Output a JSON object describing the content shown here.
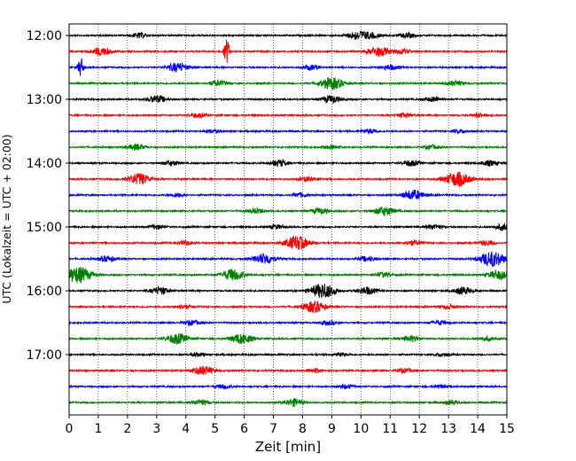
{
  "chart_data": {
    "type": "line",
    "xlabel": "Zeit  [min]",
    "ylabel": "UTC (Lokalzeit = UTC + 02:00)",
    "xlim": [
      0,
      15
    ],
    "x_ticks": [
      0,
      1,
      2,
      3,
      4,
      5,
      6,
      7,
      8,
      9,
      10,
      11,
      12,
      13,
      14,
      15
    ],
    "x_tick_labels": [
      "0",
      "1",
      "2",
      "3",
      "4",
      "5",
      "6",
      "7",
      "8",
      "9",
      "10",
      "11",
      "12",
      "13",
      "14",
      "15"
    ],
    "y_tick_labels": [
      "12:00",
      "13:00",
      "14:00",
      "15:00",
      "16:00",
      "17:00"
    ],
    "y_tick_rows": [
      0,
      4,
      8,
      12,
      16,
      20
    ],
    "grid": "vertical dotted at every minute",
    "trace_colors": [
      "#000000",
      "#ff0000",
      "#0000ff",
      "#008000"
    ],
    "traces": [
      {
        "start": "12:00",
        "bursts": [
          {
            "t": 2.4,
            "amp": 0.3
          },
          {
            "t": 9.9,
            "amp": 0.55
          },
          {
            "t": 10.4,
            "amp": 0.3
          },
          {
            "t": 11.6,
            "amp": 0.3
          }
        ]
      },
      {
        "start": "12:15",
        "bursts": [
          {
            "t": 1.1,
            "amp": 0.5
          },
          {
            "t": 5.4,
            "amp": 1.5
          },
          {
            "t": 10.6,
            "amp": 0.6
          },
          {
            "t": 11.4,
            "amp": 0.3
          }
        ]
      },
      {
        "start": "12:30",
        "bursts": [
          {
            "t": 0.4,
            "amp": 1.2
          },
          {
            "t": 3.7,
            "amp": 0.55
          },
          {
            "t": 8.3,
            "amp": 0.3
          },
          {
            "t": 11.0,
            "amp": 0.3
          }
        ]
      },
      {
        "start": "12:45",
        "bursts": [
          {
            "t": 5.1,
            "amp": 0.35
          },
          {
            "t": 9.0,
            "amp": 0.75
          },
          {
            "t": 13.2,
            "amp": 0.3
          }
        ]
      },
      {
        "start": "13:00",
        "bursts": [
          {
            "t": 3.0,
            "amp": 0.45
          },
          {
            "t": 9.0,
            "amp": 0.45
          },
          {
            "t": 12.5,
            "amp": 0.3
          }
        ]
      },
      {
        "start": "13:15",
        "bursts": [
          {
            "t": 4.4,
            "amp": 0.25
          },
          {
            "t": 11.5,
            "amp": 0.25
          },
          {
            "t": 14.1,
            "amp": 0.25
          }
        ]
      },
      {
        "start": "13:30",
        "bursts": [
          {
            "t": 4.9,
            "amp": 0.2
          },
          {
            "t": 10.3,
            "amp": 0.25
          },
          {
            "t": 13.4,
            "amp": 0.2
          }
        ]
      },
      {
        "start": "13:45",
        "bursts": [
          {
            "t": 2.3,
            "amp": 0.35
          },
          {
            "t": 9.0,
            "amp": 0.25
          },
          {
            "t": 12.4,
            "amp": 0.25
          }
        ]
      },
      {
        "start": "14:00",
        "bursts": [
          {
            "t": 3.5,
            "amp": 0.3
          },
          {
            "t": 7.2,
            "amp": 0.4
          },
          {
            "t": 11.7,
            "amp": 0.35
          },
          {
            "t": 14.4,
            "amp": 0.3
          }
        ]
      },
      {
        "start": "14:15",
        "bursts": [
          {
            "t": 2.4,
            "amp": 0.7
          },
          {
            "t": 8.2,
            "amp": 0.3
          },
          {
            "t": 13.3,
            "amp": 0.9
          }
        ]
      },
      {
        "start": "14:30",
        "bursts": [
          {
            "t": 3.7,
            "amp": 0.25
          },
          {
            "t": 7.9,
            "amp": 0.25
          },
          {
            "t": 11.8,
            "amp": 0.6
          }
        ]
      },
      {
        "start": "14:45",
        "bursts": [
          {
            "t": 6.4,
            "amp": 0.3
          },
          {
            "t": 8.6,
            "amp": 0.35
          },
          {
            "t": 10.8,
            "amp": 0.55
          }
        ]
      },
      {
        "start": "15:00",
        "bursts": [
          {
            "t": 3.0,
            "amp": 0.25
          },
          {
            "t": 7.1,
            "amp": 0.25
          },
          {
            "t": 12.5,
            "amp": 0.3
          },
          {
            "t": 14.9,
            "amp": 0.4
          }
        ]
      },
      {
        "start": "15:15",
        "bursts": [
          {
            "t": 4.0,
            "amp": 0.25
          },
          {
            "t": 7.8,
            "amp": 0.85
          },
          {
            "t": 11.8,
            "amp": 0.3
          },
          {
            "t": 14.3,
            "amp": 0.3
          }
        ]
      },
      {
        "start": "15:30",
        "bursts": [
          {
            "t": 1.3,
            "amp": 0.35
          },
          {
            "t": 6.7,
            "amp": 0.65
          },
          {
            "t": 10.2,
            "amp": 0.3
          },
          {
            "t": 14.5,
            "amp": 0.95
          }
        ]
      },
      {
        "start": "15:45",
        "bursts": [
          {
            "t": 0.3,
            "amp": 1.0
          },
          {
            "t": 5.6,
            "amp": 0.7
          },
          {
            "t": 10.8,
            "amp": 0.3
          },
          {
            "t": 14.7,
            "amp": 0.55
          }
        ]
      },
      {
        "start": "16:00",
        "bursts": [
          {
            "t": 3.1,
            "amp": 0.45
          },
          {
            "t": 8.7,
            "amp": 0.9
          },
          {
            "t": 10.2,
            "amp": 0.45
          },
          {
            "t": 13.5,
            "amp": 0.45
          }
        ]
      },
      {
        "start": "16:15",
        "bursts": [
          {
            "t": 3.9,
            "amp": 0.25
          },
          {
            "t": 8.4,
            "amp": 0.7
          },
          {
            "t": 13.0,
            "amp": 0.25
          }
        ]
      },
      {
        "start": "16:30",
        "bursts": [
          {
            "t": 4.2,
            "amp": 0.3
          },
          {
            "t": 8.9,
            "amp": 0.25
          },
          {
            "t": 12.7,
            "amp": 0.25
          }
        ]
      },
      {
        "start": "16:45",
        "bursts": [
          {
            "t": 3.7,
            "amp": 0.65
          },
          {
            "t": 5.9,
            "amp": 0.65
          },
          {
            "t": 11.7,
            "amp": 0.35
          },
          {
            "t": 14.3,
            "amp": 0.25
          }
        ]
      },
      {
        "start": "17:00",
        "bursts": [
          {
            "t": 4.4,
            "amp": 0.2
          },
          {
            "t": 9.3,
            "amp": 0.2
          },
          {
            "t": 12.8,
            "amp": 0.2
          }
        ]
      },
      {
        "start": "17:15",
        "bursts": [
          {
            "t": 4.6,
            "amp": 0.55
          },
          {
            "t": 8.4,
            "amp": 0.25
          },
          {
            "t": 11.5,
            "amp": 0.25
          }
        ]
      },
      {
        "start": "17:30",
        "bursts": [
          {
            "t": 5.3,
            "amp": 0.25
          },
          {
            "t": 9.5,
            "amp": 0.25
          },
          {
            "t": 12.7,
            "amp": 0.2
          }
        ]
      },
      {
        "start": "17:45",
        "bursts": [
          {
            "t": 4.5,
            "amp": 0.35
          },
          {
            "t": 7.7,
            "amp": 0.45
          },
          {
            "t": 13.1,
            "amp": 0.25
          }
        ]
      }
    ]
  }
}
